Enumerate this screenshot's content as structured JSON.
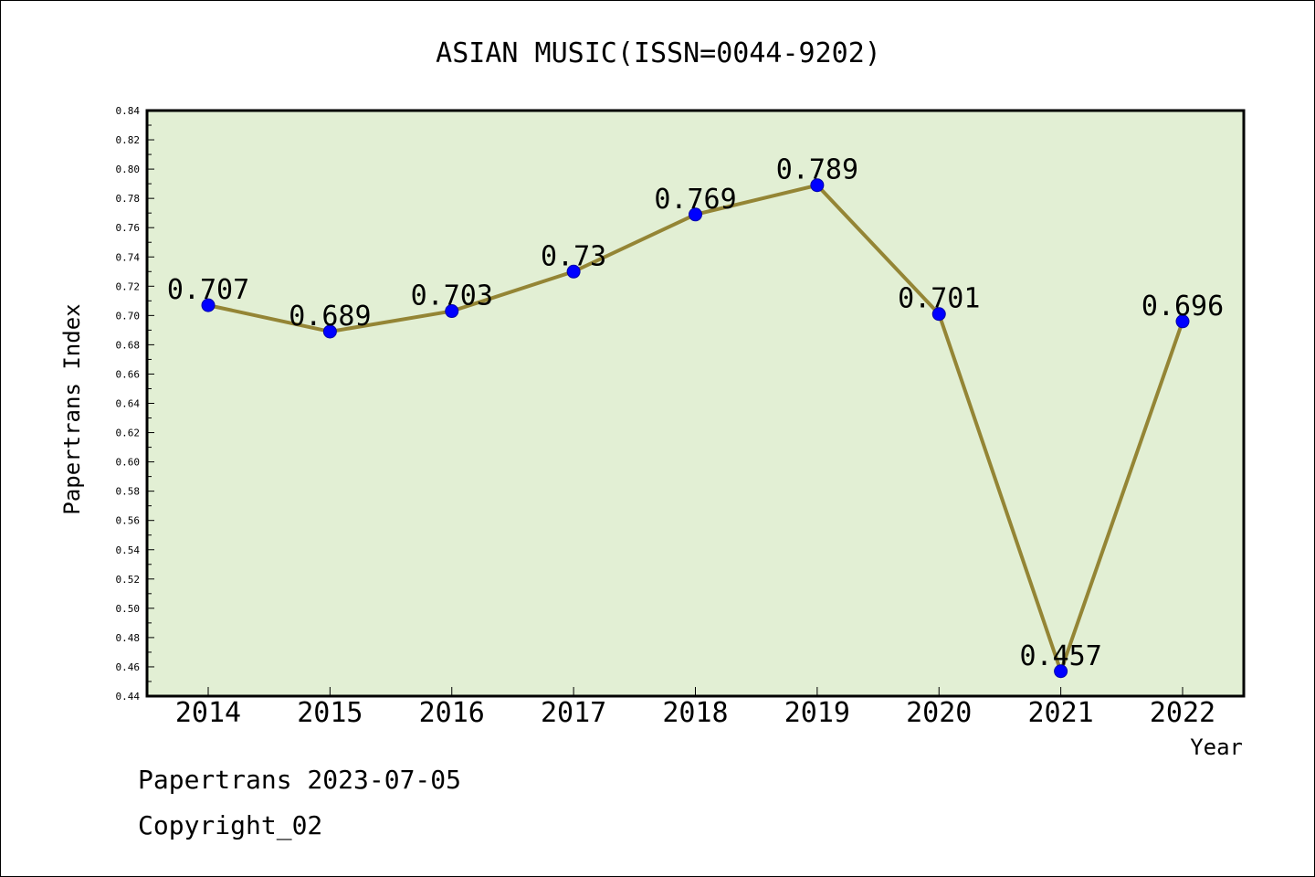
{
  "chart_data": {
    "type": "line",
    "title": "ASIAN MUSIC(ISSN=0044-9202)",
    "xlabel": "Year",
    "ylabel": "Papertrans Index",
    "categories": [
      "2014",
      "2015",
      "2016",
      "2017",
      "2018",
      "2019",
      "2020",
      "2021",
      "2022"
    ],
    "values": [
      0.707,
      0.689,
      0.703,
      0.73,
      0.769,
      0.789,
      0.701,
      0.457,
      0.696
    ],
    "data_labels": [
      "0.707",
      "0.689",
      "0.703",
      "0.73",
      "0.769",
      "0.789",
      "0.701",
      "0.457",
      "0.696"
    ],
    "y_ticks": [
      "0.44",
      "0.46",
      "0.48",
      "0.50",
      "0.52",
      "0.54",
      "0.56",
      "0.58",
      "0.60",
      "0.62",
      "0.64",
      "0.66",
      "0.68",
      "0.70",
      "0.72",
      "0.74",
      "0.76",
      "0.78",
      "0.80",
      "0.82",
      "0.84"
    ],
    "ylim": [
      0.44,
      0.84
    ],
    "grid": false,
    "legend": "none",
    "colors": {
      "plot_background": "#e2efd4",
      "line": "#948535",
      "marker": "#0000ff"
    }
  },
  "footer": {
    "line1": "Papertrans 2023-07-05",
    "line2": "Copyright_02"
  }
}
